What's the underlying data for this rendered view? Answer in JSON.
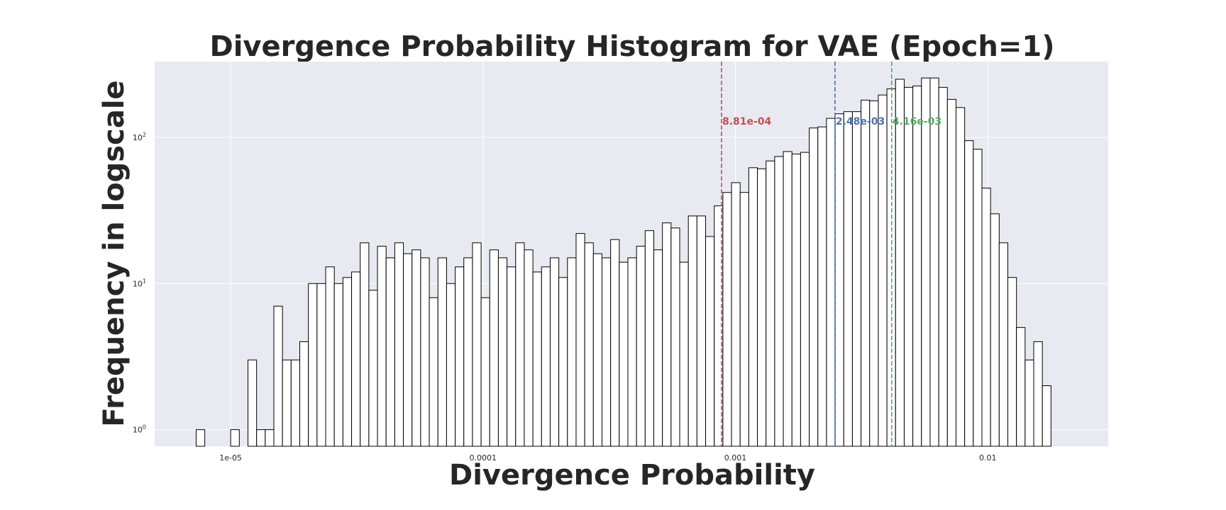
{
  "chart_data": {
    "type": "bar",
    "title": "Divergence Probability Histogram for VAE (Epoch=1)",
    "xlabel": "Divergence Probability",
    "ylabel": "Frequency in logscale",
    "x_scale": "log",
    "y_scale": "log",
    "xlim": [
      5e-06,
      0.03
    ],
    "ylim": [
      0.77,
      330
    ],
    "x_ticks": [
      {
        "value": 1e-05,
        "label": "1e-05"
      },
      {
        "value": 0.0001,
        "label": "0.0001"
      },
      {
        "value": 0.001,
        "label": "0.001"
      },
      {
        "value": 0.01,
        "label": "0.01"
      }
    ],
    "y_ticks": [
      {
        "value": 1,
        "base": "10",
        "exp": "0"
      },
      {
        "value": 10,
        "base": "10",
        "exp": "1"
      },
      {
        "value": 100,
        "base": "10",
        "exp": "2"
      }
    ],
    "grid": true,
    "background": "#e9e9f1",
    "bar_fill": "#ffffff",
    "bar_edge": "#000000",
    "bins": {
      "x_start": 7.3e-06,
      "x_end": 0.0178,
      "counts": [
        1,
        0,
        0,
        0,
        1,
        0,
        3,
        1,
        1,
        7,
        3,
        3,
        4,
        10,
        10,
        13,
        10,
        11,
        12,
        19,
        9,
        18,
        15,
        19,
        16,
        17,
        15,
        8,
        15,
        10,
        13,
        15,
        19,
        8,
        17,
        15,
        13,
        19,
        17,
        12,
        13,
        15,
        11,
        15,
        22,
        19,
        16,
        15,
        20,
        14,
        15,
        18,
        23,
        17,
        26,
        24,
        14,
        29,
        29,
        21,
        34,
        42,
        49,
        42,
        62,
        61,
        69,
        74,
        80,
        77,
        79,
        116,
        118,
        135,
        145,
        150,
        150,
        180,
        178,
        195,
        215,
        250,
        220,
        225,
        255,
        255,
        220,
        182,
        160,
        95,
        83,
        45,
        30,
        19,
        11,
        5,
        3,
        4,
        2
      ]
    },
    "annotations": [
      {
        "value": 0.000881,
        "label": "8.81e-04",
        "color": "#c44e52"
      },
      {
        "value": 0.00248,
        "label": "2.48e-03",
        "color": "#4c72b0"
      },
      {
        "value": 0.00416,
        "label": "4.16e-03",
        "color": "#55a868"
      }
    ]
  }
}
